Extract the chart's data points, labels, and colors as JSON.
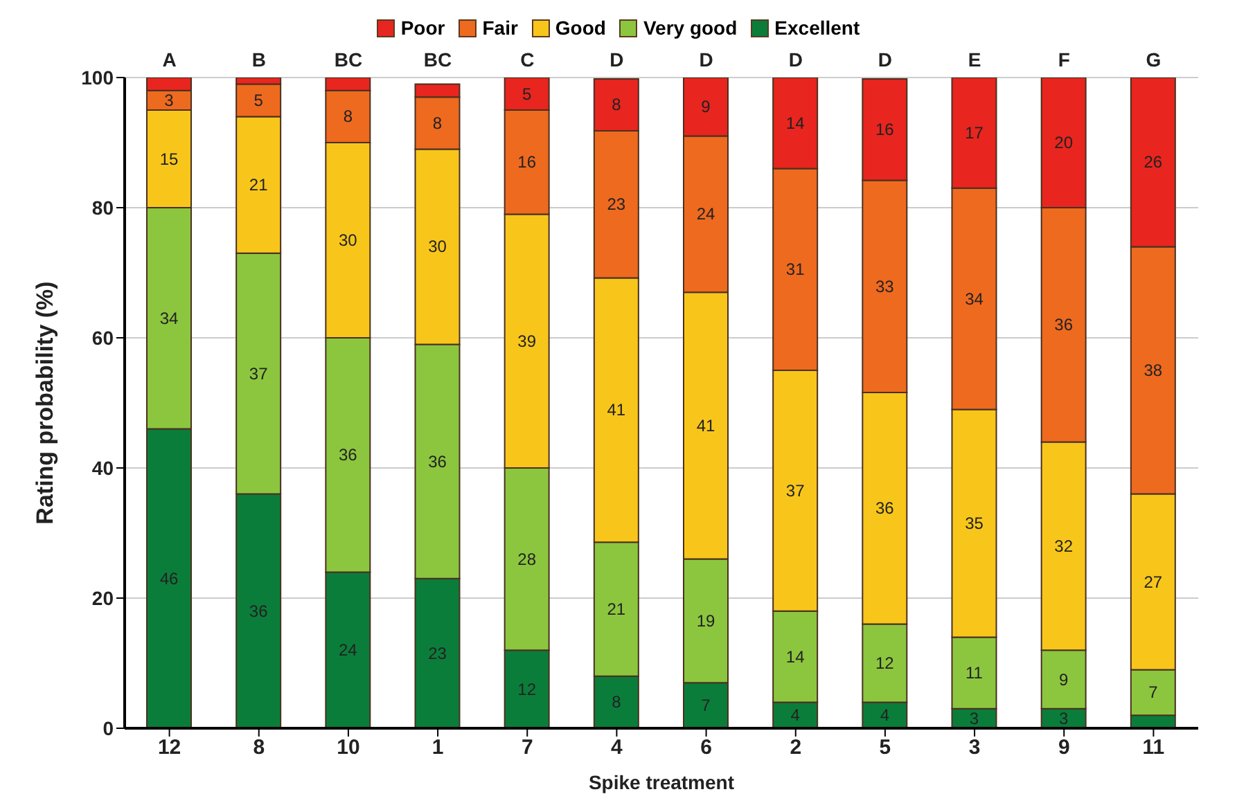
{
  "chart_data": {
    "type": "bar",
    "stacked": true,
    "xlabel": "Spike treatment",
    "ylabel": "Rating probability (%)",
    "categories": [
      "12",
      "8",
      "10",
      "1",
      "7",
      "4",
      "6",
      "2",
      "5",
      "3",
      "9",
      "11"
    ],
    "series": [
      {
        "name": "Excellent",
        "color": "#0b7d3a",
        "values": [
          46,
          36,
          24,
          23,
          12,
          8,
          7,
          4,
          4,
          3,
          3,
          2
        ],
        "value_labels": [
          "46",
          "36",
          "24",
          "23",
          "12",
          "8",
          "7",
          "4",
          "4",
          "3",
          "3",
          null
        ]
      },
      {
        "name": "Very good",
        "color": "#8cc63f",
        "values": [
          34,
          37,
          36,
          36,
          28,
          20.6,
          19,
          14,
          12,
          11,
          9,
          7
        ],
        "value_labels": [
          "34",
          "37",
          "36",
          "36",
          "28",
          "21",
          "19",
          "14",
          "12",
          "11",
          "9",
          "7"
        ]
      },
      {
        "name": "Good",
        "color": "#f8c61b",
        "values": [
          15,
          21,
          30,
          30,
          39,
          40.6,
          41,
          37,
          35.6,
          35,
          32,
          27
        ],
        "value_labels": [
          "15",
          "21",
          "30",
          "30",
          "39",
          "41",
          "41",
          "37",
          "36",
          "35",
          "32",
          "27"
        ]
      },
      {
        "name": "Fair",
        "color": "#ee6a1f",
        "values": [
          3,
          5,
          8,
          8,
          16,
          22.6,
          24,
          31,
          32.6,
          34,
          36,
          38
        ],
        "value_labels": [
          "3",
          "5",
          "8",
          "8",
          "16",
          "23",
          "24",
          "31",
          "33",
          "34",
          "36",
          "38"
        ]
      },
      {
        "name": "Poor",
        "color": "#e8251f",
        "values": [
          2,
          1,
          2,
          2,
          5,
          8,
          9,
          14,
          15.6,
          17,
          20,
          26
        ],
        "value_labels": [
          null,
          null,
          null,
          null,
          "5",
          "8",
          "9",
          "14",
          "16",
          "17",
          "20",
          "26"
        ]
      }
    ],
    "ylim": [
      0,
      100
    ],
    "yticks": [
      0,
      20,
      40,
      60,
      80,
      100
    ],
    "grid": "y",
    "legend": "top",
    "annotations": [
      "A",
      "B",
      "BC",
      "BC",
      "C",
      "D",
      "D",
      "D",
      "D",
      "E",
      "F",
      "G"
    ]
  }
}
